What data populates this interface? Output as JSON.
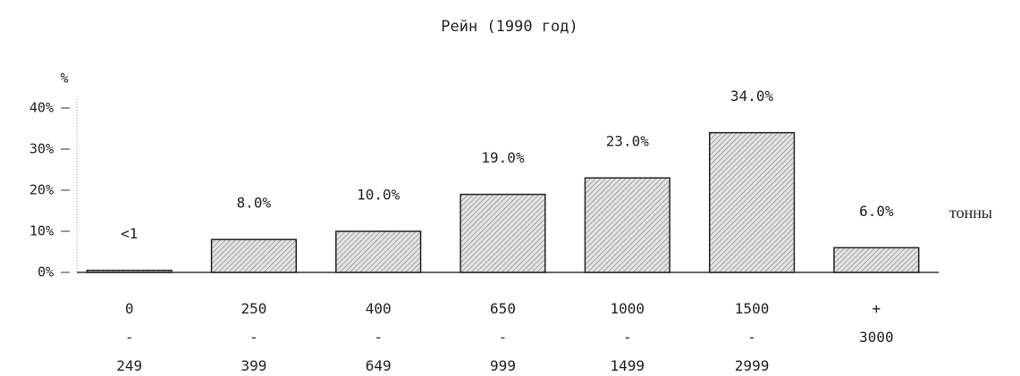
{
  "chart_data": {
    "type": "bar",
    "title": "Рейн (1990 год)",
    "y_label": "%",
    "x_label": "тонны",
    "categories": [
      "0\n-\n249",
      "250\n-\n399",
      "400\n-\n649",
      "650\n-\n999",
      "1000\n-\n1499",
      "1500\n-\n2999",
      "+\n3000"
    ],
    "values": [
      0.5,
      8.0,
      10.0,
      19.0,
      23.0,
      34.0,
      6.0
    ],
    "value_labels": [
      "<1",
      "8.0%",
      "10.0%",
      "19.0%",
      "23.0%",
      "34.0%",
      "6.0%"
    ],
    "color": "#c8c8c8",
    "ylim": [
      0,
      40
    ],
    "yticks": [
      {
        "value": 0,
        "label": "0%"
      },
      {
        "value": 10,
        "label": "10%"
      },
      {
        "value": 20,
        "label": "20%"
      },
      {
        "value": 30,
        "label": "30%"
      },
      {
        "value": 40,
        "label": "40%"
      }
    ]
  }
}
